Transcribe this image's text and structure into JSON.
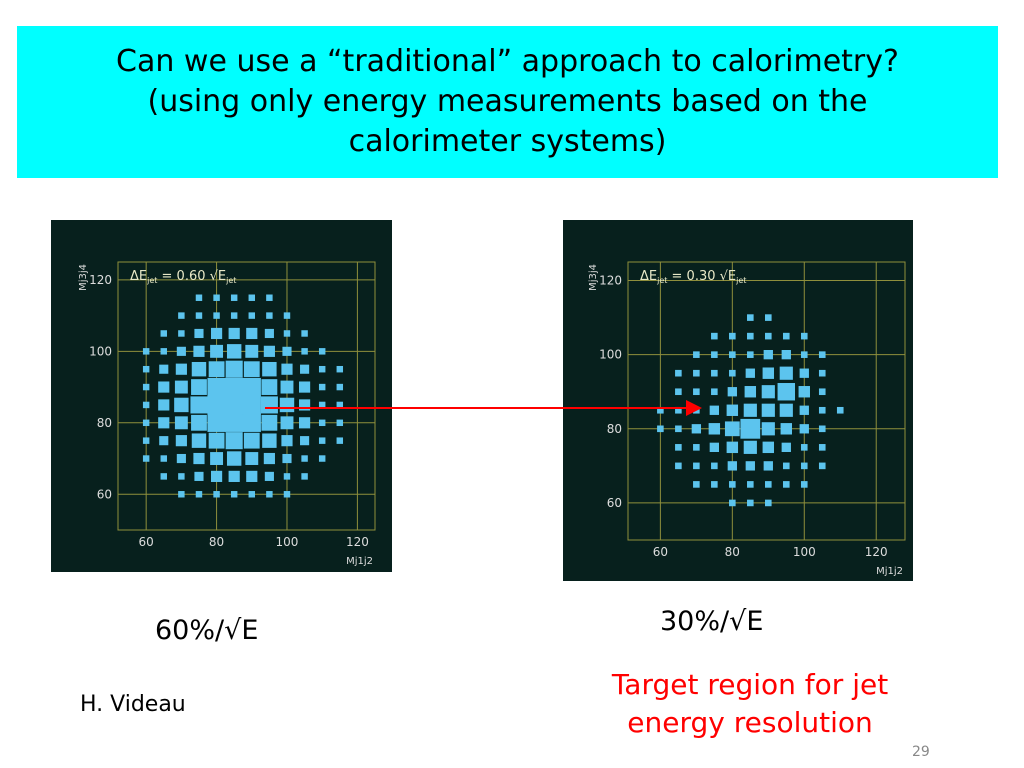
{
  "title_lines": [
    "Can we use a “traditional” approach to calorimetry?",
    "(using only energy measurements based on the",
    "calorimeter systems)"
  ],
  "resolution_left": "60%/√E",
  "resolution_right": "30%/√E",
  "author": "H. Videau",
  "target_note": "Target region for jet energy resolution",
  "page_number": "29",
  "chart_data": [
    {
      "type": "heatmap",
      "annotation_parts": [
        "ΔE",
        "jet",
        " = 0.60 √E",
        "jet"
      ],
      "x_label": "Mj1j2",
      "y_label": "Mj3j4",
      "color": "#5cc4ee",
      "grid": true,
      "xlim": [
        52,
        125
      ],
      "ylim": [
        50,
        125
      ],
      "xticks": [
        60,
        80,
        100,
        120
      ],
      "yticks": [
        60,
        80,
        100,
        120
      ],
      "x": [
        60,
        65,
        70,
        75,
        80,
        85,
        90,
        95,
        100,
        105,
        110,
        115
      ],
      "y": [
        60,
        65,
        70,
        75,
        80,
        85,
        90,
        95,
        100,
        105,
        110,
        115
      ],
      "values": [
        [
          0,
          0,
          1,
          1,
          1,
          1,
          1,
          1,
          1,
          0,
          0,
          0
        ],
        [
          0,
          1,
          1,
          2,
          3,
          3,
          3,
          2,
          1,
          1,
          0,
          0
        ],
        [
          1,
          1,
          2,
          3,
          4,
          5,
          4,
          3,
          2,
          1,
          1,
          0
        ],
        [
          1,
          2,
          3,
          5,
          6,
          7,
          6,
          5,
          3,
          2,
          1,
          1
        ],
        [
          1,
          3,
          4,
          6,
          8,
          8,
          8,
          6,
          4,
          3,
          1,
          1
        ],
        [
          1,
          3,
          5,
          7,
          8,
          9,
          8,
          7,
          5,
          3,
          1,
          1
        ],
        [
          1,
          3,
          4,
          6,
          8,
          8,
          8,
          6,
          4,
          3,
          1,
          1
        ],
        [
          1,
          2,
          3,
          5,
          6,
          7,
          6,
          5,
          3,
          2,
          1,
          1
        ],
        [
          1,
          1,
          2,
          3,
          4,
          5,
          4,
          3,
          2,
          1,
          1,
          0
        ],
        [
          0,
          1,
          1,
          2,
          3,
          3,
          3,
          2,
          1,
          1,
          0,
          0
        ],
        [
          0,
          0,
          1,
          1,
          1,
          1,
          1,
          1,
          1,
          0,
          0,
          0
        ],
        [
          0,
          0,
          0,
          1,
          1,
          1,
          1,
          1,
          0,
          0,
          0,
          0
        ]
      ]
    },
    {
      "type": "heatmap",
      "annotation_parts": [
        "ΔE",
        "jet",
        " = 0.30 √E",
        "jet"
      ],
      "x_label": "Mj1j2",
      "y_label": "Mj3j4",
      "color": "#5cc4ee",
      "grid": true,
      "xlim": [
        51,
        128
      ],
      "ylim": [
        50,
        125
      ],
      "xticks": [
        60,
        80,
        100,
        120
      ],
      "yticks": [
        60,
        80,
        100,
        120
      ],
      "x": [
        60,
        65,
        70,
        75,
        80,
        85,
        90,
        95,
        100,
        105,
        110
      ],
      "y": [
        60,
        65,
        70,
        75,
        80,
        85,
        90,
        95,
        100,
        105,
        110
      ],
      "values": [
        [
          0,
          0,
          0,
          0,
          1,
          1,
          1,
          0,
          0,
          0,
          0
        ],
        [
          0,
          0,
          1,
          1,
          1,
          1,
          1,
          1,
          1,
          0,
          0
        ],
        [
          0,
          1,
          1,
          1,
          2,
          2,
          2,
          1,
          1,
          1,
          0
        ],
        [
          0,
          1,
          1,
          2,
          3,
          4,
          3,
          2,
          1,
          1,
          0
        ],
        [
          1,
          1,
          2,
          3,
          5,
          9,
          4,
          3,
          2,
          1,
          0
        ],
        [
          1,
          1,
          1,
          2,
          3,
          4,
          4,
          4,
          2,
          1,
          1
        ],
        [
          0,
          1,
          1,
          1,
          2,
          3,
          4,
          7,
          3,
          1,
          0
        ],
        [
          0,
          1,
          1,
          1,
          1,
          2,
          3,
          4,
          2,
          1,
          0
        ],
        [
          0,
          0,
          1,
          1,
          1,
          1,
          2,
          2,
          1,
          1,
          0
        ],
        [
          0,
          0,
          0,
          1,
          1,
          1,
          1,
          1,
          1,
          0,
          0
        ],
        [
          0,
          0,
          0,
          0,
          0,
          1,
          1,
          0,
          0,
          0,
          0
        ]
      ]
    }
  ]
}
